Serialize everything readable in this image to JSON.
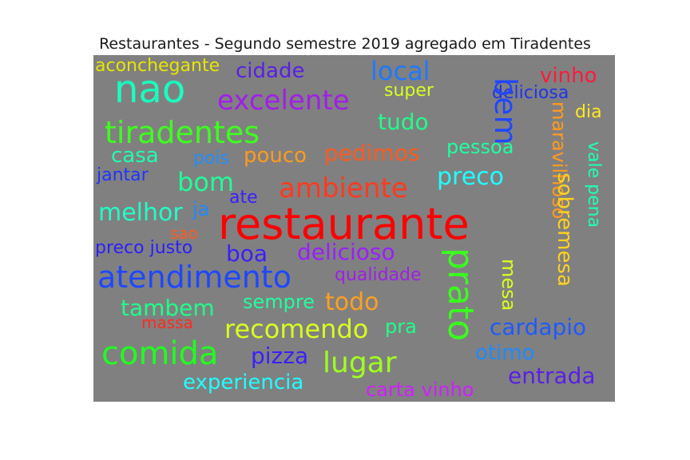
{
  "title": "Restaurantes - Segundo semestre 2019 agregado em Tiradentes",
  "background_color": "#808080",
  "words": [
    {
      "text": "aconchegante",
      "color": "#e7e500"
    },
    {
      "text": "nao",
      "color": "#19ffbf"
    },
    {
      "text": "cidade",
      "color": "#5a1fe7"
    },
    {
      "text": "local",
      "color": "#1f78ff"
    },
    {
      "text": "vinho",
      "color": "#ff1a3c"
    },
    {
      "text": "super",
      "color": "#d6ff1f"
    },
    {
      "text": "excelente",
      "color": "#a01fe7"
    },
    {
      "text": "deliciosa",
      "color": "#1f35e7"
    },
    {
      "text": "bem",
      "color": "#1f47ff"
    },
    {
      "text": "dia",
      "color": "#ffe81f"
    },
    {
      "text": "tiradentes",
      "color": "#3dff1f"
    },
    {
      "text": "tudo",
      "color": "#1fff8a"
    },
    {
      "text": "maravilhoso",
      "color": "#ff9a1f"
    },
    {
      "text": "casa",
      "color": "#1fffb0"
    },
    {
      "text": "pois",
      "color": "#1f8fff"
    },
    {
      "text": "pouco",
      "color": "#ff9a1f"
    },
    {
      "text": "pedimos",
      "color": "#ff5a1f"
    },
    {
      "text": "pessoa",
      "color": "#1fffa0"
    },
    {
      "text": "jantar",
      "color": "#1f35ff"
    },
    {
      "text": "preco",
      "color": "#1fffff"
    },
    {
      "text": "bom",
      "color": "#1fff9a"
    },
    {
      "text": "ambiente",
      "color": "#ff3a1f"
    },
    {
      "text": "sobremesa",
      "color": "#ffd21f"
    },
    {
      "text": "vale pena",
      "color": "#1fffb6"
    },
    {
      "text": "ate",
      "color": "#3a1fff"
    },
    {
      "text": "melhor",
      "color": "#1fffc8"
    },
    {
      "text": "ja",
      "color": "#1f8aff"
    },
    {
      "text": "restaurante",
      "color": "#ff0000"
    },
    {
      "text": "sao",
      "color": "#ff5a1f"
    },
    {
      "text": "preco justo",
      "color": "#2a1fff"
    },
    {
      "text": "boa",
      "color": "#3a1fff"
    },
    {
      "text": "delicioso",
      "color": "#9a1fff"
    },
    {
      "text": "prato",
      "color": "#3aff1f"
    },
    {
      "text": "atendimento",
      "color": "#1f47ff"
    },
    {
      "text": "qualidade",
      "color": "#a01fe7"
    },
    {
      "text": "mesa",
      "color": "#d6ff1f"
    },
    {
      "text": "tambem",
      "color": "#1fff8a"
    },
    {
      "text": "sempre",
      "color": "#1fffa0"
    },
    {
      "text": "todo",
      "color": "#ffa01f"
    },
    {
      "text": "massa",
      "color": "#ff2a1f"
    },
    {
      "text": "recomendo",
      "color": "#d6ff1f"
    },
    {
      "text": "pra",
      "color": "#1fff8a"
    },
    {
      "text": "cardapio",
      "color": "#1f5aff"
    },
    {
      "text": "comida",
      "color": "#1fff1f"
    },
    {
      "text": "pizza",
      "color": "#3a1fff"
    },
    {
      "text": "lugar",
      "color": "#a0ff1f"
    },
    {
      "text": "otimo",
      "color": "#1f8aff"
    },
    {
      "text": "entrada",
      "color": "#5a1fe7"
    },
    {
      "text": "experiencia",
      "color": "#1fffff"
    },
    {
      "text": "carta vinho",
      "color": "#d01fff"
    }
  ]
}
